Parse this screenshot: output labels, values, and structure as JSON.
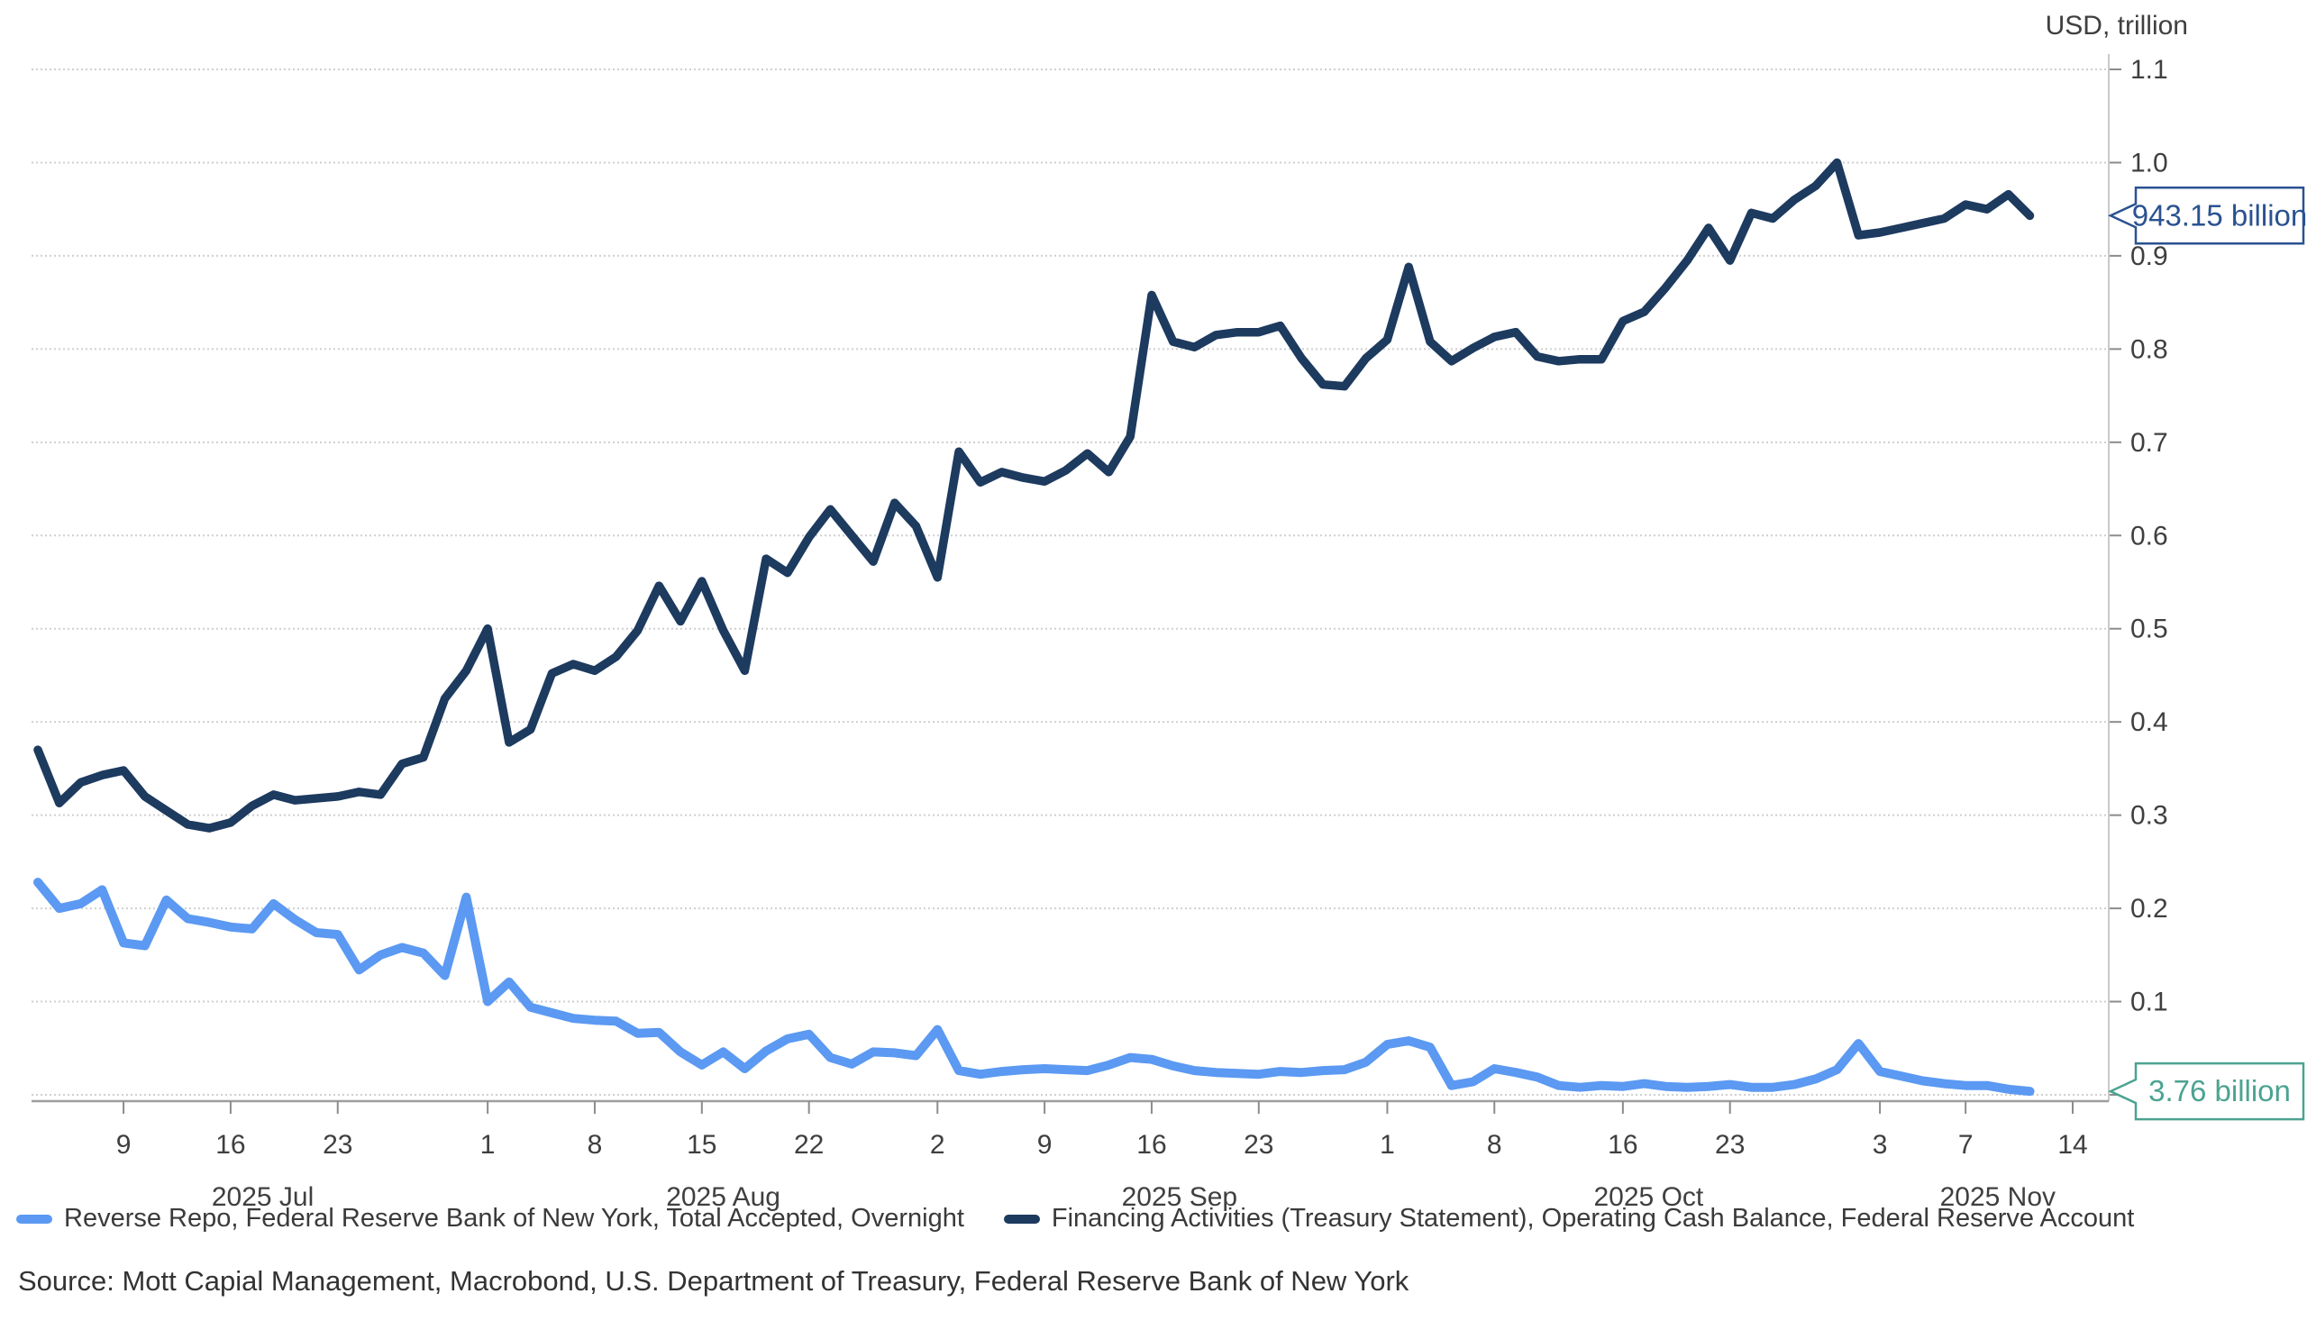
{
  "header": {
    "axis_title": "USD, trillion"
  },
  "legend": {
    "items": [
      {
        "label": "Reverse Repo, Federal Reserve Bank of New York, Total Accepted, Overnight",
        "color": "#5B99F2"
      },
      {
        "label": "Financing Activities (Treasury Statement), Operating Cash Balance, Federal Reserve Account",
        "color": "#1D3A5F"
      }
    ]
  },
  "source": {
    "text": "Source: Mott Capial Management, Macrobond, U.S. Department of Treasury, Federal Reserve Bank of New York"
  },
  "callouts": {
    "cash_balance": {
      "label": "943.15 billion",
      "value": 0.94315,
      "color": "#2A5291"
    },
    "reverse_repo": {
      "label": "3.76 billion",
      "value": 0.00376,
      "color": "#4BA390"
    }
  },
  "chart_data": {
    "type": "line",
    "title": "",
    "ylabel": "USD, trillion",
    "ylim": [
      0.0,
      1.1
    ],
    "grid": true,
    "legend_position": "bottom",
    "y_ticks": [
      "0.0",
      "0.1",
      "0.2",
      "0.3",
      "0.4",
      "0.5",
      "0.6",
      "0.7",
      "0.8",
      "0.9",
      "1.0",
      "1.1"
    ],
    "x_ticks": [
      {
        "label": "9",
        "day": 4
      },
      {
        "label": "16",
        "day": 9
      },
      {
        "label": "23",
        "day": 14
      },
      {
        "label": "1",
        "day": 21
      },
      {
        "label": "8",
        "day": 26
      },
      {
        "label": "15",
        "day": 31
      },
      {
        "label": "22",
        "day": 36
      },
      {
        "label": "2",
        "day": 42
      },
      {
        "label": "9",
        "day": 47
      },
      {
        "label": "16",
        "day": 52
      },
      {
        "label": "23",
        "day": 57
      },
      {
        "label": "1",
        "day": 63
      },
      {
        "label": "8",
        "day": 68
      },
      {
        "label": "16",
        "day": 74
      },
      {
        "label": "23",
        "day": 79
      },
      {
        "label": "3",
        "day": 86
      },
      {
        "label": "7",
        "day": 90
      },
      {
        "label": "14",
        "day": 95
      }
    ],
    "month_labels": [
      {
        "label": "2025 Jul",
        "day": 10.5
      },
      {
        "label": "2025 Aug",
        "day": 32.0
      },
      {
        "label": "2025 Sep",
        "day": 53.3
      },
      {
        "label": "2025 Oct",
        "day": 75.2
      },
      {
        "label": "2025 Nov",
        "day": 91.5
      }
    ],
    "x_description": "Business days from 2025-07-02 to 2025-11-12, values in USD trillion",
    "series": [
      {
        "name": "Reverse Repo, Federal Reserve Bank of New York, Total Accepted, Overnight",
        "color": "#5B99F2",
        "end_value": 0.00376,
        "end_label": "3.76 billion",
        "end_label_color": "#4BA390",
        "values": [
          0.228,
          0.2,
          0.205,
          0.22,
          0.163,
          0.16,
          0.209,
          0.189,
          0.185,
          0.18,
          0.178,
          0.205,
          0.188,
          0.174,
          0.172,
          0.134,
          0.15,
          0.158,
          0.152,
          0.128,
          0.212,
          0.1,
          0.121,
          0.094,
          0.088,
          0.082,
          0.08,
          0.079,
          0.066,
          0.067,
          0.046,
          0.032,
          0.046,
          0.028,
          0.047,
          0.06,
          0.065,
          0.04,
          0.033,
          0.046,
          0.045,
          0.042,
          0.07,
          0.026,
          0.022,
          0.025,
          0.027,
          0.028,
          0.027,
          0.026,
          0.032,
          0.04,
          0.038,
          0.031,
          0.026,
          0.024,
          0.023,
          0.022,
          0.025,
          0.024,
          0.026,
          0.027,
          0.035,
          0.054,
          0.058,
          0.051,
          0.01,
          0.014,
          0.028,
          0.024,
          0.019,
          0.01,
          0.008,
          0.01,
          0.009,
          0.012,
          0.009,
          0.008,
          0.009,
          0.011,
          0.008,
          0.008,
          0.011,
          0.017,
          0.027,
          0.055,
          0.025,
          0.02,
          0.015,
          0.012,
          0.01,
          0.01,
          0.006,
          0.00376
        ]
      },
      {
        "name": "Financing Activities (Treasury Statement), Operating Cash Balance, Federal Reserve Account",
        "color": "#1D3A5F",
        "end_value": 0.94315,
        "end_label": "943.15 billion",
        "end_label_color": "#2A5291",
        "values": [
          0.37,
          0.313,
          0.335,
          0.343,
          0.348,
          0.32,
          0.305,
          0.29,
          0.286,
          0.292,
          0.31,
          0.322,
          0.316,
          0.318,
          0.32,
          0.325,
          0.322,
          0.355,
          0.362,
          0.425,
          0.455,
          0.5,
          0.378,
          0.392,
          0.452,
          0.462,
          0.455,
          0.47,
          0.498,
          0.546,
          0.508,
          0.551,
          0.498,
          0.455,
          0.575,
          0.56,
          0.598,
          0.628,
          0.6,
          0.572,
          0.635,
          0.61,
          0.555,
          0.69,
          0.657,
          0.668,
          0.662,
          0.658,
          0.67,
          0.688,
          0.668,
          0.706,
          0.858,
          0.808,
          0.802,
          0.815,
          0.818,
          0.818,
          0.825,
          0.79,
          0.762,
          0.76,
          0.79,
          0.81,
          0.888,
          0.808,
          0.787,
          0.801,
          0.813,
          0.818,
          0.792,
          0.787,
          0.789,
          0.789,
          0.83,
          0.84,
          0.866,
          0.895,
          0.93,
          0.895,
          0.946,
          0.94,
          0.96,
          0.975,
          1.0,
          0.922,
          0.925,
          0.93,
          0.935,
          0.94,
          0.955,
          0.95,
          0.966,
          0.943
        ]
      }
    ]
  }
}
